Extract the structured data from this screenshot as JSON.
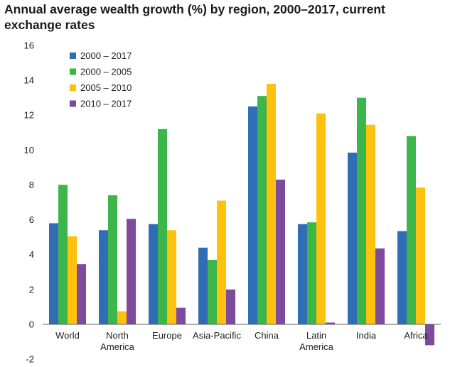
{
  "chart_data": {
    "type": "bar",
    "title": "Annual average wealth growth (%) by region, 2000–2017, current exchange rates",
    "xlabel": "",
    "ylabel": "",
    "ylim": [
      -2,
      16
    ],
    "yticks": [
      "-2",
      "0",
      "2",
      "4",
      "6",
      "8",
      "10",
      "12",
      "14",
      "16"
    ],
    "grid": false,
    "legend_position": "top-left",
    "categories": [
      [
        "World"
      ],
      [
        "North",
        "America"
      ],
      [
        "Europe"
      ],
      [
        "Asia-Pacific"
      ],
      [
        "China"
      ],
      [
        "Latin",
        "America"
      ],
      [
        "India"
      ],
      [
        "Africa"
      ]
    ],
    "series": [
      {
        "name": "2000 – 2017",
        "color": "#2f6db5",
        "values": [
          5.8,
          5.4,
          5.75,
          4.4,
          12.5,
          5.75,
          9.85,
          5.35
        ]
      },
      {
        "name": "2000 – 2005",
        "color": "#3cb54a",
        "values": [
          8.0,
          7.4,
          11.2,
          3.7,
          13.1,
          5.85,
          13.0,
          10.8
        ]
      },
      {
        "name": "2005 – 2010",
        "color": "#fec10e",
        "values": [
          5.05,
          0.75,
          5.4,
          7.1,
          13.8,
          12.1,
          11.45,
          7.85
        ]
      },
      {
        "name": "2010 – 2017",
        "color": "#7e4a9c",
        "values": [
          3.45,
          6.05,
          0.95,
          2.0,
          8.3,
          0.1,
          4.35,
          -1.2
        ]
      }
    ]
  }
}
